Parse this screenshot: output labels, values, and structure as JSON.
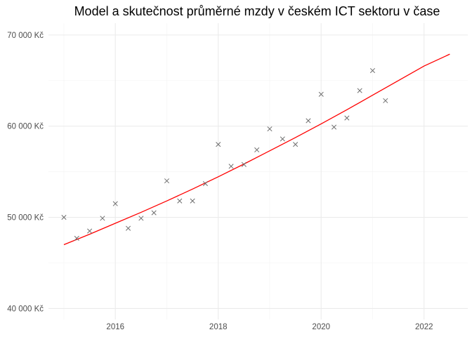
{
  "chart_data": {
    "type": "scatter",
    "title": "Model a skutečnost průměrné mzdy v českém ICT sektoru v čase",
    "xlabel": "",
    "ylabel": "",
    "xlim": [
      2014.7,
      2022.85
    ],
    "ylim": [
      38800,
      71300
    ],
    "grid": true,
    "x_ticks": [
      2016,
      2018,
      2020,
      2022
    ],
    "x_tick_labels": [
      "2016",
      "2018",
      "2020",
      "2022"
    ],
    "y_ticks": [
      40000,
      50000,
      60000,
      70000
    ],
    "y_tick_labels": [
      "40 000 Kč",
      "50 000 Kč",
      "60 000 Kč",
      "70 000 Kč"
    ],
    "series": [
      {
        "type": "scatter",
        "marker": "x",
        "color": "#6e6e6e",
        "x": [
          2015.0,
          2015.25,
          2015.5,
          2015.75,
          2016.0,
          2016.25,
          2016.5,
          2016.75,
          2017.0,
          2017.25,
          2017.5,
          2017.75,
          2018.0,
          2018.25,
          2018.5,
          2018.75,
          2019.0,
          2019.25,
          2019.5,
          2019.75,
          2020.0,
          2020.25,
          2020.5,
          2020.75,
          2021.0,
          2021.25
        ],
        "y": [
          50000,
          47700,
          48500,
          49900,
          51500,
          48800,
          49900,
          50500,
          54000,
          51800,
          51800,
          53700,
          58000,
          55600,
          55800,
          57400,
          59700,
          58600,
          58000,
          60600,
          63500,
          59900,
          60900,
          63900,
          66100,
          62800
        ]
      },
      {
        "type": "line",
        "color": "#ff0000",
        "x": [
          2015.0,
          2015.5,
          2016.0,
          2016.5,
          2017.0,
          2017.5,
          2018.0,
          2018.5,
          2019.0,
          2019.5,
          2020.0,
          2020.5,
          2021.0,
          2021.5,
          2022.0,
          2022.5
        ],
        "y": [
          47000,
          48150,
          49350,
          50550,
          51800,
          53100,
          54450,
          55850,
          57300,
          58750,
          60250,
          61800,
          63400,
          65000,
          66600,
          67900
        ]
      }
    ]
  }
}
